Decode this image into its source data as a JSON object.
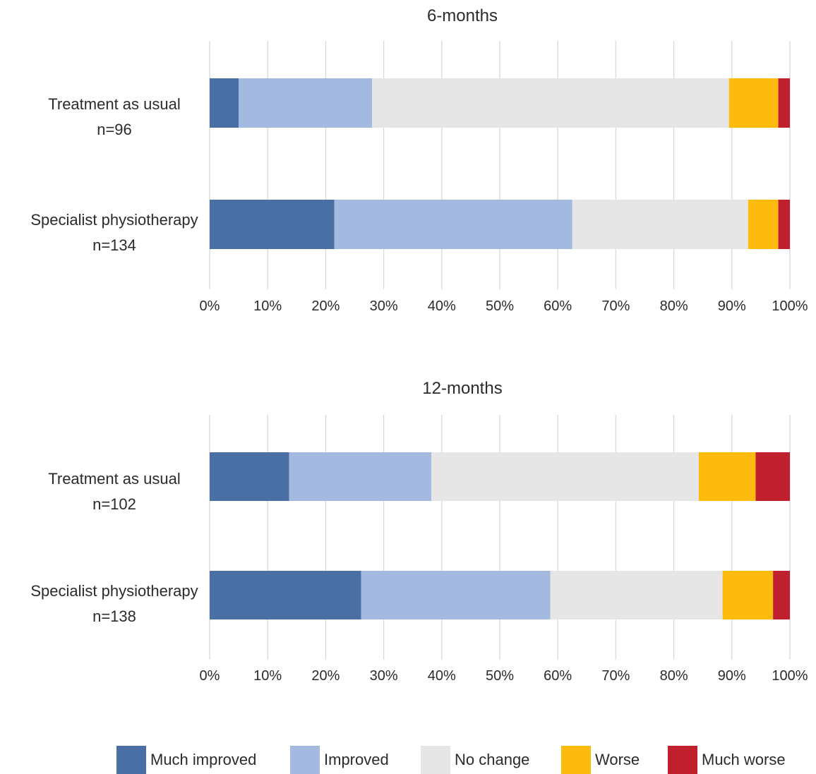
{
  "chart_data": [
    {
      "type": "bar",
      "orientation": "horizontal",
      "stacked": "percent",
      "title": "6-months",
      "categories": [
        {
          "label": "Treatment as usual",
          "n_label": "n=96"
        },
        {
          "label": "Specialist physiotherapy",
          "n_label": "n=134"
        }
      ],
      "series": [
        {
          "name": "Much improved",
          "color": "#4a6fa5",
          "values": [
            5,
            21.5
          ]
        },
        {
          "name": "Improved",
          "color": "#a4b9e0",
          "values": [
            23,
            41
          ]
        },
        {
          "name": "No change",
          "color": "#e6e6e6",
          "values": [
            61.5,
            30.3
          ]
        },
        {
          "name": "Worse",
          "color": "#fdbb0d",
          "values": [
            8.5,
            5.2
          ]
        },
        {
          "name": "Much worse",
          "color": "#c0202e",
          "values": [
            2,
            2
          ]
        }
      ],
      "xlim": [
        0,
        100
      ],
      "x_ticks": [
        "0%",
        "10%",
        "20%",
        "30%",
        "40%",
        "50%",
        "60%",
        "70%",
        "80%",
        "90%",
        "100%"
      ],
      "grid": true
    },
    {
      "type": "bar",
      "orientation": "horizontal",
      "stacked": "percent",
      "title": "12-months",
      "categories": [
        {
          "label": "Treatment as usual",
          "n_label": "n=102"
        },
        {
          "label": "Specialist physiotherapy",
          "n_label": "n=138"
        }
      ],
      "series": [
        {
          "name": "Much improved",
          "color": "#4a6fa5",
          "values": [
            13.7,
            26.1
          ]
        },
        {
          "name": "Improved",
          "color": "#a4b9e0",
          "values": [
            24.5,
            32.6
          ]
        },
        {
          "name": "No change",
          "color": "#e6e6e6",
          "values": [
            46.1,
            29.7
          ]
        },
        {
          "name": "Worse",
          "color": "#fdbb0d",
          "values": [
            9.8,
            8.7
          ]
        },
        {
          "name": "Much worse",
          "color": "#c0202e",
          "values": [
            5.9,
            2.9
          ]
        }
      ],
      "xlim": [
        0,
        100
      ],
      "x_ticks": [
        "0%",
        "10%",
        "20%",
        "30%",
        "40%",
        "50%",
        "60%",
        "70%",
        "80%",
        "90%",
        "100%"
      ],
      "grid": true
    }
  ],
  "legend": {
    "placement": "bottom",
    "items": [
      {
        "label": "Much improved",
        "color": "#4a6fa5"
      },
      {
        "label": "Improved",
        "color": "#a4b9e0"
      },
      {
        "label": "No change",
        "color": "#e6e6e6"
      },
      {
        "label": "Worse",
        "color": "#fdbb0d"
      },
      {
        "label": "Much worse",
        "color": "#c0202e"
      }
    ]
  }
}
